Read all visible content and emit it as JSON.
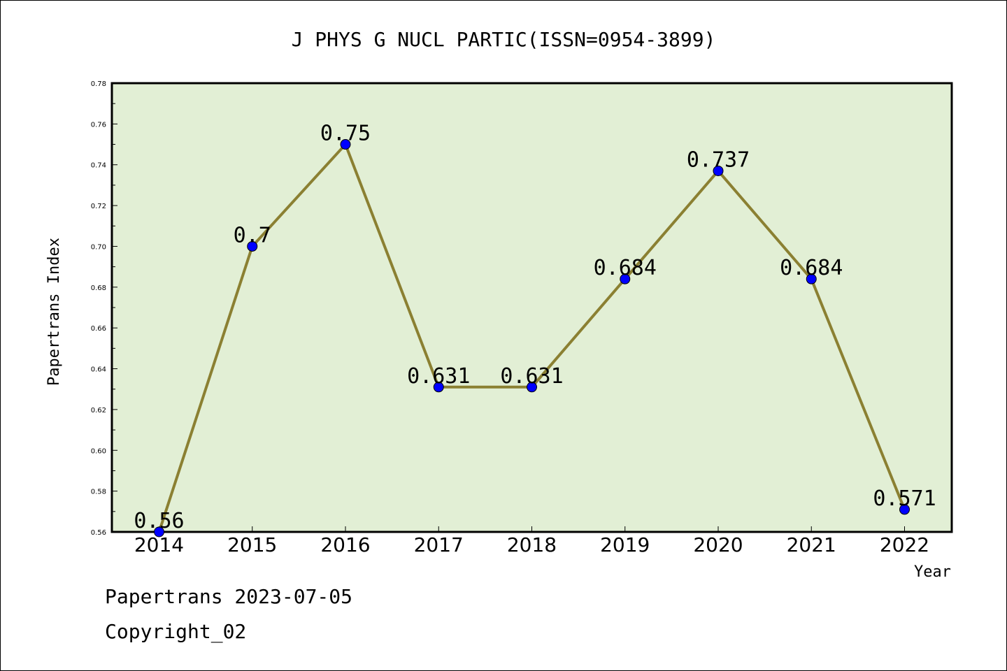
{
  "chart_data": {
    "type": "line",
    "title": "J PHYS G NUCL PARTIC(ISSN=0954-3899)",
    "xlabel": "Year",
    "ylabel": "Papertrans Index",
    "categories": [
      "2014",
      "2015",
      "2016",
      "2017",
      "2018",
      "2019",
      "2020",
      "2021",
      "2022"
    ],
    "series": [
      {
        "values": [
          0.56,
          0.7,
          0.75,
          0.631,
          0.631,
          0.684,
          0.737,
          0.684,
          0.571
        ],
        "data_labels": [
          "0.56",
          "0.7",
          "0.75",
          "0.631",
          "0.631",
          "0.684",
          "0.737",
          "0.684",
          "0.571"
        ]
      }
    ],
    "ylim": [
      0.56,
      0.78
    ],
    "yticks": [
      "0.56",
      "0.58",
      "0.60",
      "0.62",
      "0.64",
      "0.66",
      "0.68",
      "0.70",
      "0.72",
      "0.74",
      "0.76",
      "0.78"
    ],
    "grid": false,
    "colors": {
      "plot_background": "#e2efd5",
      "line": "#8b8032",
      "marker": "#0000ff"
    }
  },
  "footer": {
    "line1": "Papertrans 2023-07-05",
    "line2": "Copyright_02"
  }
}
